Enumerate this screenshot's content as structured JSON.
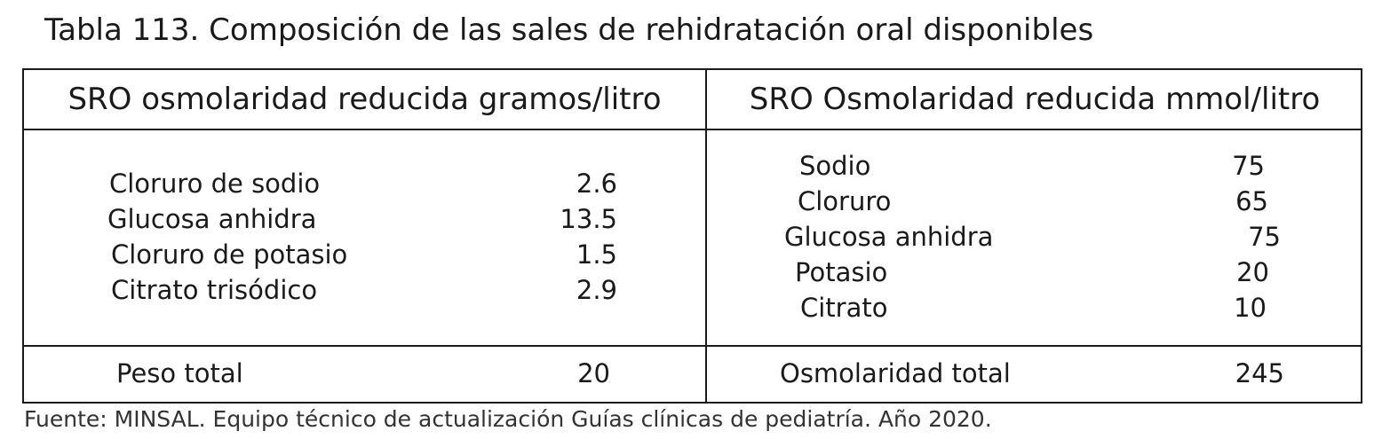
{
  "title": "Tabla 113. Composición de las sales de rehidratación oral disponibles",
  "table": {
    "headers": {
      "left": "SRO osmolaridad reducida gramos/litro",
      "right": "SRO Osmolaridad reducida mmol/litro"
    },
    "left_rows": [
      {
        "label": "Cloruro de sodio",
        "value": "2.6"
      },
      {
        "label": "Glucosa anhidra",
        "value": "13.5"
      },
      {
        "label": "Cloruro de potasio",
        "value": "1.5"
      },
      {
        "label": "Citrato trisódico",
        "value": "2.9"
      }
    ],
    "right_rows": [
      {
        "label": "Sodio",
        "value": "75"
      },
      {
        "label": "Cloruro",
        "value": "65"
      },
      {
        "label": "Glucosa anhidra",
        "value": "75"
      },
      {
        "label": "Potasio",
        "value": "20"
      },
      {
        "label": "Citrato",
        "value": "10"
      }
    ],
    "totals": {
      "left": {
        "label": "Peso total",
        "value": "20"
      },
      "right": {
        "label": "Osmolaridad total",
        "value": "245"
      }
    }
  },
  "source": "Fuente: MINSAL. Equipo técnico de actualización Guías clínicas de pediatría. Año 2020."
}
